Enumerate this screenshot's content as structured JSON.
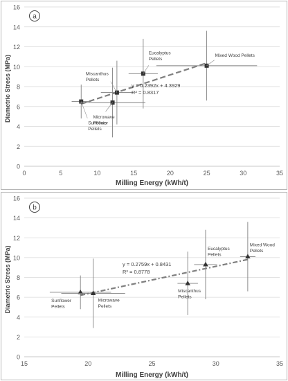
{
  "chart_data": [
    {
      "type": "scatter",
      "panel_label": "a",
      "xlabel": "Milling Energy (kWh/t)",
      "ylabel": "Diametric Stress (MPa)",
      "xlim": [
        0,
        35
      ],
      "ylim": [
        0,
        16
      ],
      "xticks": [
        0,
        5,
        10,
        15,
        20,
        25,
        30,
        35
      ],
      "yticks": [
        0,
        2,
        4,
        6,
        8,
        10,
        12,
        14,
        16
      ],
      "grid": true,
      "marker": "square",
      "marker_color": "#333333",
      "trendline": {
        "style": "dashed",
        "color": "#7f7f7f",
        "slope": 0.2392,
        "intercept": 4.3929,
        "x_range": [
          7.8,
          25.0
        ]
      },
      "equation_lines": [
        "y = 0.2392x + 4.3929",
        "R² = 0.8317"
      ],
      "points": [
        {
          "label": [
            "Sunflower",
            "Pellets"
          ],
          "x": 7.8,
          "y": 6.5,
          "xerr": [
            1.3,
            1.3
          ],
          "yerr": [
            1.7,
            1.7
          ]
        },
        {
          "label": [
            "Microwave",
            "Pellets"
          ],
          "x": 12.1,
          "y": 6.4,
          "xerr": [
            4.5,
            4.5
          ],
          "yerr": [
            3.5,
            3.5
          ]
        },
        {
          "label": [
            "Miscanthus",
            "Pellets"
          ],
          "x": 12.7,
          "y": 7.4,
          "xerr": [
            2.2,
            2.2
          ],
          "yerr": [
            3.2,
            3.2
          ]
        },
        {
          "label": [
            "Eucalyptus",
            "Pellets"
          ],
          "x": 16.3,
          "y": 9.3,
          "xerr": [
            2.0,
            2.0
          ],
          "yerr": [
            3.5,
            3.5
          ]
        },
        {
          "label": [
            "Mixed Wood Pellets"
          ],
          "x": 25.0,
          "y": 10.1,
          "xerr": [
            6.9,
            6.9
          ],
          "yerr": [
            3.5,
            3.5
          ]
        }
      ]
    },
    {
      "type": "scatter",
      "panel_label": "b",
      "xlabel": "Milling Energy (kWh/t)",
      "ylabel": "Diametric Stress (MPa)",
      "xlim": [
        15,
        35
      ],
      "ylim": [
        0,
        16
      ],
      "xticks": [
        15,
        20,
        25,
        30,
        35
      ],
      "yticks": [
        0,
        2,
        4,
        6,
        8,
        10,
        12,
        14,
        16
      ],
      "grid": true,
      "marker": "triangle",
      "marker_color": "#333333",
      "trendline": {
        "style": "dash-dot",
        "color": "#7f7f7f",
        "slope": 0.2759,
        "intercept": 0.8431,
        "x_range": [
          19.4,
          32.5
        ]
      },
      "equation_lines": [
        "y = 0.2759x + 0.8431",
        "R² = 0.8778"
      ],
      "points": [
        {
          "label": [
            "Sunflower",
            "Pellets"
          ],
          "x": 19.4,
          "y": 6.5,
          "xerr": [
            2.4,
            2.4
          ],
          "yerr": [
            1.7,
            1.7
          ]
        },
        {
          "label": [
            "Microwave",
            "Pellets"
          ],
          "x": 20.4,
          "y": 6.4,
          "xerr": [
            2.5,
            2.5
          ],
          "yerr": [
            3.5,
            3.5
          ]
        },
        {
          "label": [
            "Miscanthus",
            "Pellets"
          ],
          "x": 27.8,
          "y": 7.4,
          "xerr": [
            0.8,
            0.8
          ],
          "yerr": [
            3.2,
            3.2
          ]
        },
        {
          "label": [
            "Eucalyptus",
            "Pellets"
          ],
          "x": 29.2,
          "y": 9.3,
          "xerr": [
            0.9,
            0.9
          ],
          "yerr": [
            3.5,
            3.5
          ]
        },
        {
          "label": [
            "Mixed Wood",
            "Pellets"
          ],
          "x": 32.5,
          "y": 10.1,
          "xerr": [
            0.6,
            0.6
          ],
          "yerr": [
            3.5,
            3.5
          ]
        }
      ]
    }
  ]
}
